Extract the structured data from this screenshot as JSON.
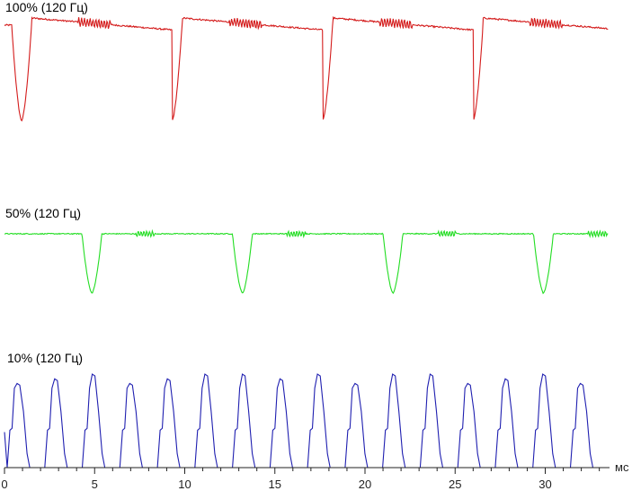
{
  "chart_data": {
    "type": "line",
    "x_unit": "мс",
    "xlim": [
      0,
      35
    ],
    "x_ticks": [
      0,
      5,
      10,
      15,
      20,
      25,
      30
    ],
    "series": [
      {
        "name": "100% (120 Гц)",
        "color": "#d41c1c",
        "description_values": {
          "baseline_level": 0.93,
          "dip_level": 0.0,
          "dip_times_ms": [
            0.95,
            9.3,
            17.65,
            26.0
          ],
          "dip_width_ms": 0.7
        }
      },
      {
        "name": "50% (120 Гц)",
        "color": "#22dd22",
        "description_values": {
          "baseline_level": 0.93,
          "dip_level": 0.0,
          "dip_times_ms": [
            4.85,
            13.2,
            21.55,
            29.9
          ],
          "dip_width_ms": 0.7
        }
      },
      {
        "name": "10% (120 Гц)",
        "color": "#1f1fb0",
        "description_values": {
          "pulse_start_ms": 0.3,
          "pulse_period_ms": 2.083,
          "pulse_count": 16,
          "pulse_peak_level": 1.0,
          "pulse_width_ms": 1.1
        }
      }
    ]
  }
}
